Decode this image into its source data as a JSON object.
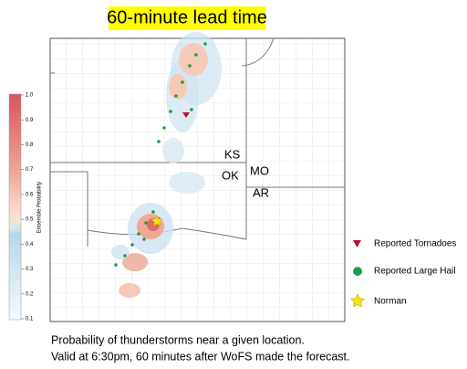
{
  "title": "60-minute lead time",
  "colorbar": {
    "label": "Ensemble Probability",
    "ticks": [
      "1.0",
      "0.9",
      "0.8",
      "0.7",
      "0.6",
      "0.5",
      "0.4",
      "0.3",
      "0.2",
      "0.1"
    ]
  },
  "map_labels": [
    "KS",
    "OK",
    "MO",
    "AR"
  ],
  "legend": [
    "Reported Tornadoes",
    "Reported Large Hail",
    "Norman"
  ],
  "caption": [
    "Probability of thunderstorms near a given location.",
    "Valid at 6:30pm, 60 minutes after WoFS made the forecast."
  ]
}
